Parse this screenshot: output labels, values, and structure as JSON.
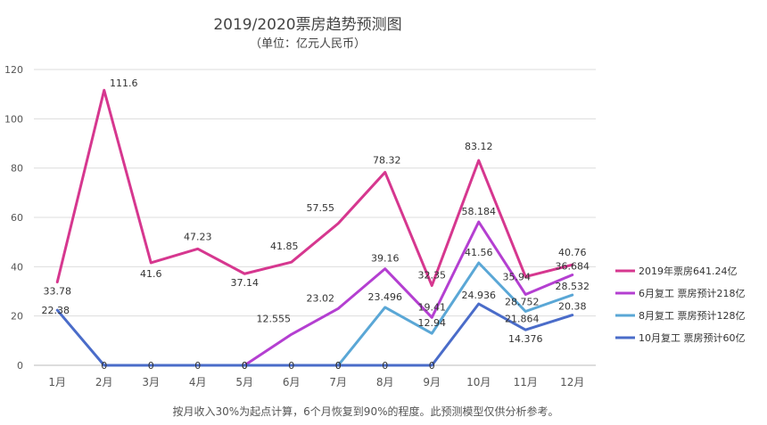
{
  "chart_data": {
    "type": "line",
    "title": "2019/2020票房趋势预测图",
    "subtitle": "（单位：亿元人民币）",
    "categories": [
      "1月",
      "2月",
      "3月",
      "4月",
      "5月",
      "6月",
      "7月",
      "8月",
      "9月",
      "10月",
      "11月",
      "12月"
    ],
    "ylim": [
      0,
      120
    ],
    "yticks": [
      0,
      20,
      40,
      60,
      80,
      100,
      120
    ],
    "grid": true,
    "legend_position": "right",
    "series": [
      {
        "name": "2019年票房641.24亿",
        "color": "#d6378f",
        "values": [
          33.78,
          111.6,
          41.6,
          47.23,
          37.14,
          41.85,
          57.55,
          78.32,
          32.35,
          83.12,
          35.94,
          40.76
        ],
        "labels": [
          "33.78",
          "111.6",
          "41.6",
          "47.23",
          "37.14",
          "41.85",
          "57.55",
          "78.32",
          "32.35",
          "83.12",
          "35.94",
          "40.76"
        ]
      },
      {
        "name": "6月复工  票房预计218亿",
        "color": "#b43fd1",
        "values": [
          null,
          null,
          null,
          null,
          0,
          12.555,
          23.02,
          39.16,
          19.41,
          58.184,
          28.752,
          36.684
        ],
        "labels": [
          "",
          "",
          "",
          "",
          "0",
          "12.555",
          "23.02",
          "39.16",
          "19.41",
          "58.184",
          "28.752",
          "36.684"
        ]
      },
      {
        "name": "8月复工  票房预计128亿",
        "color": "#5aa7d6",
        "values": [
          null,
          null,
          null,
          null,
          null,
          null,
          0,
          23.496,
          12.94,
          41.56,
          21.864,
          28.532
        ],
        "labels": [
          "",
          "",
          "",
          "",
          "",
          "",
          "0",
          "23.496",
          "12.94",
          "41.56",
          "21.864",
          "28.532"
        ]
      },
      {
        "name": "10月复工  票房预计60亿",
        "color": "#4a6cc9",
        "values": [
          22.38,
          0,
          0,
          0,
          0,
          0,
          0,
          0,
          0,
          24.936,
          14.376,
          20.38
        ],
        "labels": [
          "22.38",
          "0",
          "0",
          "0",
          "0",
          "0",
          "0",
          "0",
          "0",
          "24.936",
          "14.376",
          "20.38"
        ]
      }
    ],
    "footnote": "按月收入30%为起点计算，6个月恢复到90%的程度。此预测模型仅供分析参考。"
  }
}
